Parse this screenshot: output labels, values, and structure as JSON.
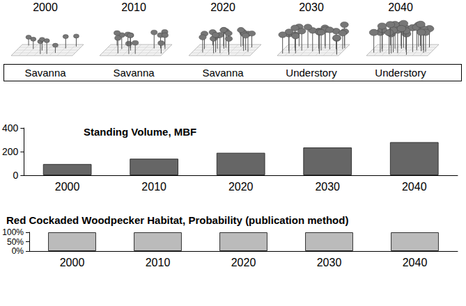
{
  "chart_data": [
    {
      "type": "bar",
      "title": "Standing Volume, MBF",
      "categories": [
        "2000",
        "2010",
        "2020",
        "2030",
        "2040"
      ],
      "values": [
        95,
        140,
        190,
        235,
        280
      ],
      "color": "#666666",
      "ylim": [
        0,
        400
      ],
      "yticks": [
        0,
        200,
        400
      ],
      "grid": false
    },
    {
      "type": "bar",
      "title": "Red Cockaded Woodpecker Habitat, Probability (publication method)",
      "categories": [
        "2000",
        "2010",
        "2020",
        "2030",
        "2040"
      ],
      "values": [
        100,
        100,
        100,
        100,
        100
      ],
      "color": "#bbbbbb",
      "ylim": [
        0,
        100
      ],
      "yticks": [
        {
          "value": 0,
          "label": "0%"
        },
        {
          "value": 50,
          "label": "50%"
        },
        {
          "value": 100,
          "label": "100%"
        }
      ],
      "grid": false
    }
  ],
  "stand_views": {
    "years": [
      "2000",
      "2010",
      "2020",
      "2030",
      "2040"
    ],
    "conditions": [
      "Savanna",
      "Savanna",
      "Savanna",
      "Understory",
      "Understory"
    ]
  }
}
